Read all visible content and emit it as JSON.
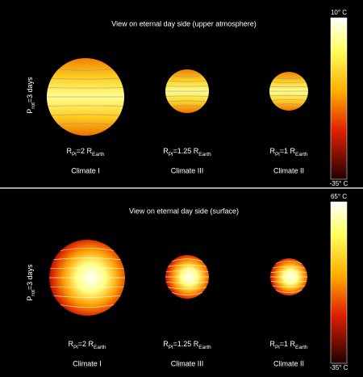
{
  "panels": [
    {
      "title": "View on eternal day side (upper atmosphere)",
      "rotation_label": [
        "P",
        "rot",
        "=3 days"
      ],
      "planets": [
        {
          "radius_label": [
            "R",
            "Pl",
            "=2 R",
            "Earth"
          ],
          "climate": "Climate I"
        },
        {
          "radius_label": [
            "R",
            "Pl",
            "=1.25 R",
            "Earth"
          ],
          "climate": "Climate III"
        },
        {
          "radius_label": [
            "R",
            "Pl",
            "=1 R",
            "Earth"
          ],
          "climate": "Climate II"
        }
      ],
      "colorbar": {
        "max_label": "10° C",
        "min_label": "-35° C"
      }
    },
    {
      "title": "View on eternal day side (surface)",
      "rotation_label": [
        "P",
        "rot",
        "=3 days"
      ],
      "planets": [
        {
          "radius_label": [
            "R",
            "Pl",
            "=2 R",
            "Earth"
          ],
          "climate": "Climate I"
        },
        {
          "radius_label": [
            "R",
            "Pl",
            "=1.25 R",
            "Earth"
          ],
          "climate": "Climate III"
        },
        {
          "radius_label": [
            "R",
            "Pl",
            "=1 R",
            "Earth"
          ],
          "climate": "Climate II"
        }
      ],
      "colorbar": {
        "max_label": "65° C",
        "min_label": "-35° C"
      }
    }
  ]
}
